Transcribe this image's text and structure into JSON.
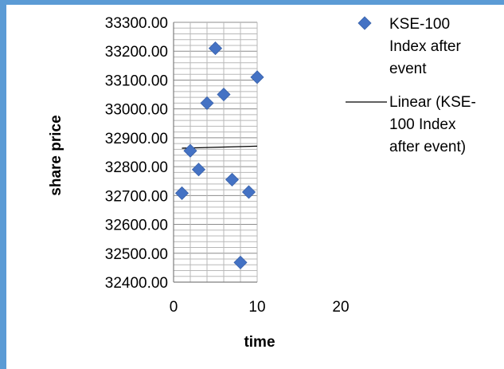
{
  "chart_data": {
    "type": "scatter",
    "title": "",
    "xlabel": "time",
    "ylabel": "share price",
    "xlim": [
      0,
      20
    ],
    "ylim": [
      32400,
      33300
    ],
    "x_ticks": [
      0,
      10,
      20
    ],
    "x_tick_labels": [
      "0",
      "10",
      "20"
    ],
    "y_ticks": [
      32400,
      32500,
      32600,
      32700,
      32800,
      32900,
      33000,
      33100,
      33200,
      33300
    ],
    "y_tick_labels": [
      "32400.00",
      "32500.00",
      "32600.00",
      "32700.00",
      "32800.00",
      "32900.00",
      "33000.00",
      "33100.00",
      "33200.00",
      "33300.00"
    ],
    "grid": true,
    "legend_position": "right",
    "series": [
      {
        "name": "KSE-100 Index after event",
        "marker": "diamond",
        "color": "#4472C4",
        "x": [
          1,
          2,
          3,
          4,
          5,
          6,
          7,
          8,
          9,
          10
        ],
        "y": [
          32708,
          32855,
          32790,
          33020,
          33210,
          33050,
          32755,
          32468,
          32712,
          33110
        ]
      }
    ],
    "trendlines": [
      {
        "name": "Linear (KSE-100 Index after event)",
        "color": "#000000",
        "x": [
          1,
          10
        ],
        "y": [
          32864,
          32871
        ]
      }
    ],
    "legend": [
      {
        "lines": [
          "KSE-100",
          "Index after",
          "event"
        ],
        "symbol": "diamond",
        "color": "#4472C4"
      },
      {
        "lines": [
          "Linear (KSE-",
          "100 Index",
          "after event)"
        ],
        "symbol": "line",
        "color": "#000000"
      }
    ],
    "border_color": "#5B9BD5"
  }
}
